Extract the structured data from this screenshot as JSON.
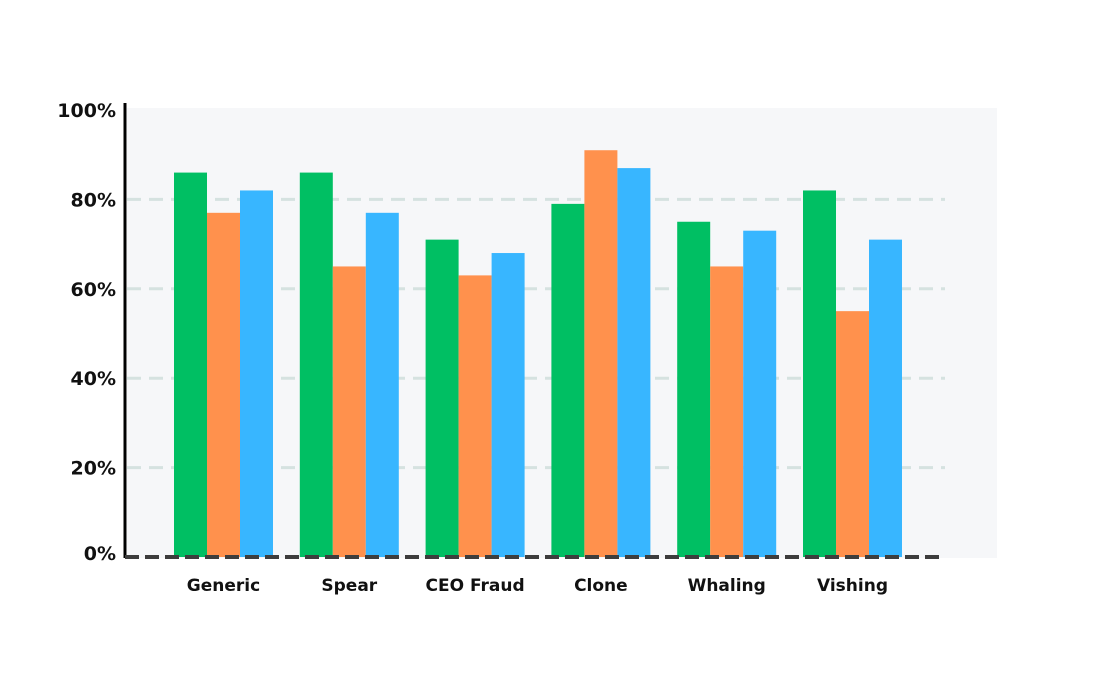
{
  "chart_data": {
    "type": "bar",
    "categories": [
      "Generic",
      "Spear",
      "CEO Fraud",
      "Clone",
      "Whaling",
      "Vishing"
    ],
    "series": [
      {
        "color": "#00bf63",
        "values": [
          86,
          86,
          71,
          79,
          75,
          82
        ]
      },
      {
        "color": "#ff914d",
        "values": [
          77,
          65,
          63,
          91,
          65,
          55
        ]
      },
      {
        "color": "#38b6ff",
        "values": [
          82,
          77,
          68,
          87,
          73,
          71
        ]
      }
    ],
    "yticks": [
      "0%",
      "20%",
      "40%",
      "60%",
      "80%",
      "100%"
    ],
    "ylim": [
      0,
      100
    ],
    "grid": true,
    "plot_background": "#f6f7f9",
    "grid_color": "#d5e2e0",
    "axis_color": "#3d3d3d"
  }
}
